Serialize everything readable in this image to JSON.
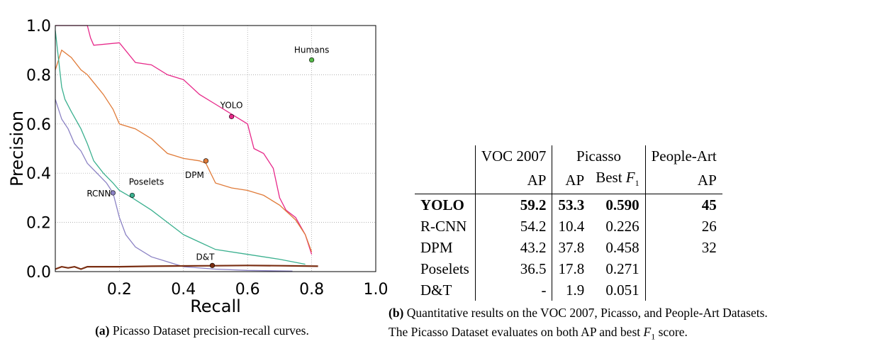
{
  "chart_data": {
    "type": "line",
    "xlabel": "Recall",
    "ylabel": "Precision",
    "xlim": [
      0.0,
      1.0
    ],
    "ylim": [
      0.0,
      1.0
    ],
    "xticks": [
      "0.2",
      "0.4",
      "0.6",
      "0.8",
      "1.0"
    ],
    "yticks": [
      "0.0",
      "0.2",
      "0.4",
      "0.6",
      "0.8",
      "1.0"
    ],
    "grid": true,
    "series": [
      {
        "name": "YOLO",
        "color": "#e7298a",
        "x": [
          0.0,
          0.03,
          0.1,
          0.11,
          0.12,
          0.2,
          0.25,
          0.3,
          0.35,
          0.4,
          0.45,
          0.5,
          0.55,
          0.6,
          0.62,
          0.65,
          0.68,
          0.7,
          0.72,
          0.75,
          0.78,
          0.8
        ],
        "y": [
          1.0,
          1.0,
          1.0,
          0.95,
          0.92,
          0.93,
          0.85,
          0.84,
          0.8,
          0.78,
          0.72,
          0.68,
          0.64,
          0.6,
          0.5,
          0.48,
          0.42,
          0.3,
          0.25,
          0.22,
          0.15,
          0.07
        ],
        "point": {
          "x": 0.55,
          "y": 0.63
        }
      },
      {
        "name": "DPM",
        "color": "#e07b39",
        "x": [
          0.0,
          0.02,
          0.05,
          0.08,
          0.1,
          0.15,
          0.18,
          0.2,
          0.25,
          0.3,
          0.35,
          0.4,
          0.45,
          0.47,
          0.5,
          0.55,
          0.6,
          0.65,
          0.7,
          0.75,
          0.78,
          0.8
        ],
        "y": [
          0.82,
          0.9,
          0.87,
          0.82,
          0.8,
          0.72,
          0.66,
          0.6,
          0.58,
          0.54,
          0.48,
          0.46,
          0.45,
          0.44,
          0.36,
          0.34,
          0.33,
          0.31,
          0.27,
          0.21,
          0.15,
          0.08
        ],
        "point": {
          "x": 0.47,
          "y": 0.45
        }
      },
      {
        "name": "Poselets",
        "color": "#3bb08f",
        "x": [
          0.0,
          0.02,
          0.03,
          0.05,
          0.08,
          0.1,
          0.12,
          0.15,
          0.18,
          0.2,
          0.24,
          0.3,
          0.35,
          0.4,
          0.45,
          0.5,
          0.6,
          0.7,
          0.78
        ],
        "y": [
          0.98,
          0.75,
          0.7,
          0.65,
          0.58,
          0.52,
          0.45,
          0.4,
          0.36,
          0.33,
          0.3,
          0.25,
          0.2,
          0.15,
          0.12,
          0.09,
          0.07,
          0.05,
          0.03
        ],
        "point": {
          "x": 0.24,
          "y": 0.31
        }
      },
      {
        "name": "RCNN",
        "color": "#8b82c4",
        "x": [
          0.0,
          0.02,
          0.04,
          0.06,
          0.08,
          0.1,
          0.13,
          0.16,
          0.18,
          0.2,
          0.22,
          0.25,
          0.3,
          0.35,
          0.4,
          0.5,
          0.6,
          0.74
        ],
        "y": [
          0.7,
          0.62,
          0.58,
          0.52,
          0.49,
          0.44,
          0.4,
          0.36,
          0.32,
          0.22,
          0.15,
          0.1,
          0.06,
          0.04,
          0.02,
          0.01,
          0.005,
          0.002
        ],
        "point": {
          "x": 0.18,
          "y": 0.32
        }
      },
      {
        "name": "D&T",
        "color": "#7a2e12",
        "x": [
          0.0,
          0.02,
          0.04,
          0.06,
          0.08,
          0.1,
          0.2,
          0.3,
          0.4,
          0.5,
          0.6,
          0.7,
          0.82
        ],
        "y": [
          0.01,
          0.02,
          0.015,
          0.02,
          0.01,
          0.02,
          0.02,
          0.022,
          0.023,
          0.024,
          0.025,
          0.024,
          0.022
        ],
        "point": {
          "x": 0.49,
          "y": 0.025
        }
      }
    ],
    "markers": [
      {
        "name": "Humans",
        "x": 0.8,
        "y": 0.86,
        "color": "#55b848"
      }
    ]
  },
  "figure_caption": {
    "label": "(a)",
    "text": " Picasso Dataset precision-recall curves."
  },
  "table": {
    "group_headers": [
      "VOC 2007",
      "Picasso",
      "People-Art"
    ],
    "sub_headers": [
      "AP",
      "AP",
      "Best ",
      "F",
      "1",
      "AP"
    ],
    "rows": [
      {
        "method": "YOLO",
        "voc_ap": "59.2",
        "pic_ap": "53.3",
        "pic_f1": "0.590",
        "pa_ap": "45"
      },
      {
        "method": "R-CNN",
        "voc_ap": "54.2",
        "pic_ap": "10.4",
        "pic_f1": "0.226",
        "pa_ap": "26"
      },
      {
        "method": "DPM",
        "voc_ap": "43.2",
        "pic_ap": "37.8",
        "pic_f1": "0.458",
        "pa_ap": "32"
      },
      {
        "method": "Poselets",
        "voc_ap": "36.5",
        "pic_ap": "17.8",
        "pic_f1": "0.271",
        "pa_ap": ""
      },
      {
        "method": "D&T",
        "voc_ap": "-",
        "pic_ap": "1.9",
        "pic_f1": "0.051",
        "pa_ap": ""
      }
    ]
  },
  "table_caption": {
    "label": "(b)",
    "line1": " Quantitative results on the VOC 2007, Picasso, and People-Art Datasets.",
    "line2a": "The Picasso Dataset evaluates on both AP and best ",
    "line2f": "F",
    "line2sub": "1",
    "line2b": " score."
  }
}
